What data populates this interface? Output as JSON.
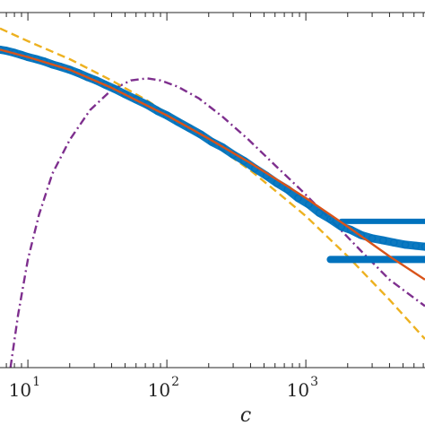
{
  "chart_data": {
    "type": "scatter",
    "title": "",
    "xlabel": "c",
    "ylabel": "",
    "x_scale": "log",
    "y_scale": "log",
    "xlim": [
      6.3,
      7200
    ],
    "ylim_decades": [
      -3.0,
      0.35
    ],
    "grid": false,
    "legend": "none",
    "x_ticks": [
      {
        "value": 10,
        "base": "10",
        "exp": "1"
      },
      {
        "value": 100,
        "base": "10",
        "exp": "2"
      },
      {
        "value": 1000,
        "base": "10",
        "exp": "3"
      }
    ],
    "series": [
      {
        "kind": "markers",
        "color": "#0072BD",
        "x": [
          6.3,
          7,
          8,
          9,
          10,
          11.5,
          13,
          15,
          17,
          20,
          23,
          27,
          31,
          36,
          42,
          50,
          60,
          72,
          86,
          100,
          120,
          145,
          175,
          210,
          250,
          300,
          360,
          430,
          520,
          620,
          740,
          880,
          1050,
          1250,
          1500,
          1800,
          2100,
          2500,
          3000,
          3600,
          4300,
          5200,
          6200,
          7200
        ],
        "y": [
          0.0,
          -0.01,
          -0.03,
          -0.05,
          -0.07,
          -0.09,
          -0.11,
          -0.14,
          -0.16,
          -0.19,
          -0.22,
          -0.26,
          -0.29,
          -0.33,
          -0.37,
          -0.42,
          -0.47,
          -0.52,
          -0.58,
          -0.62,
          -0.68,
          -0.74,
          -0.8,
          -0.87,
          -0.92,
          -0.99,
          -1.05,
          -1.12,
          -1.19,
          -1.26,
          -1.32,
          -1.4,
          -1.46,
          -1.54,
          -1.6,
          -1.67,
          -1.7,
          -1.75,
          -1.78,
          -1.8,
          -1.82,
          -1.84,
          -1.85,
          -1.86
        ]
      },
      {
        "kind": "line",
        "color": "#D95319",
        "style": "solid",
        "x": [
          6.3,
          10,
          20,
          40,
          70,
          100,
          200,
          400,
          700,
          1000,
          2000,
          4000,
          7200
        ],
        "y": [
          0.0,
          -0.07,
          -0.19,
          -0.36,
          -0.52,
          -0.62,
          -0.84,
          -1.07,
          -1.27,
          -1.4,
          -1.67,
          -1.95,
          -2.17
        ]
      },
      {
        "kind": "line",
        "color": "#EDB120",
        "style": "dashed",
        "x": [
          6.3,
          10,
          20,
          40,
          70,
          100,
          200,
          400,
          700,
          1000,
          2000,
          4000,
          7200
        ],
        "y": [
          0.2,
          0.08,
          -0.09,
          -0.29,
          -0.47,
          -0.6,
          -0.86,
          -1.14,
          -1.4,
          -1.57,
          -1.95,
          -2.36,
          -2.73
        ]
      },
      {
        "kind": "line",
        "color": "#7E2F8E",
        "style": "dashdot",
        "x": [
          7.5,
          8.5,
          10,
          12,
          15,
          20,
          28,
          40,
          55,
          72,
          90,
          120,
          170,
          250,
          380,
          600,
          900,
          1500,
          2500,
          4000,
          7200
        ],
        "y": [
          -3.0,
          -2.5,
          -1.98,
          -1.56,
          -1.17,
          -0.85,
          -0.57,
          -0.38,
          -0.29,
          -0.27,
          -0.29,
          -0.35,
          -0.46,
          -0.63,
          -0.84,
          -1.09,
          -1.31,
          -1.6,
          -1.9,
          -2.17,
          -2.42
        ]
      }
    ]
  }
}
